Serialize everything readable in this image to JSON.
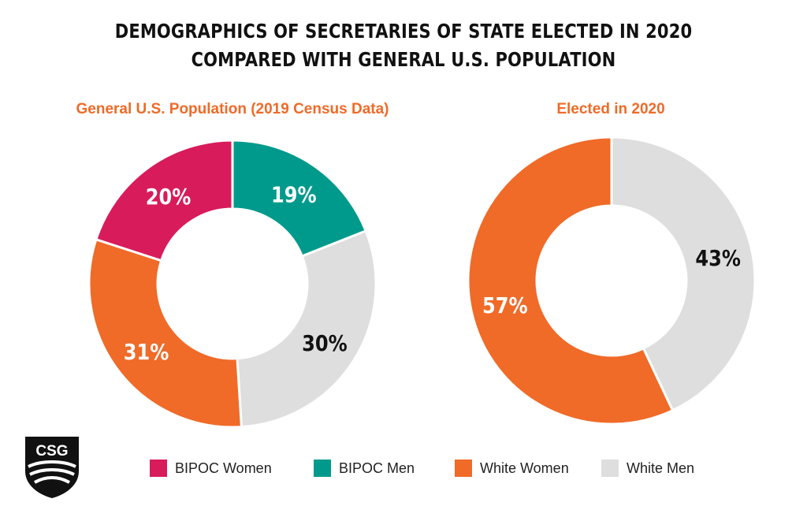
{
  "title": {
    "line1": "DEMOGRAPHICS OF SECRETARIES OF STATE ELECTED IN 2020",
    "line2": "COMPARED WITH GENERAL U.S. POPULATION"
  },
  "colors": {
    "bipoc_women": "#d81b5a",
    "bipoc_men": "#009a8c",
    "white_women": "#f06a28",
    "white_men": "#dedede",
    "subtitle": "#f06a28"
  },
  "logo": {
    "text": "CSG",
    "icon": "csg-shield-logo"
  },
  "legend": [
    {
      "label": "BIPOC Women",
      "color": "#d81b5a"
    },
    {
      "label": "BIPOC Men",
      "color": "#009a8c"
    },
    {
      "label": "White Women",
      "color": "#f06a28"
    },
    {
      "label": "White Men",
      "color": "#dedede"
    }
  ],
  "chart_data": [
    {
      "type": "pie",
      "title": "General U.S. Population (2019 Census Data)",
      "slices": [
        {
          "category": "BIPOC Men",
          "value": 19,
          "label": "19%",
          "color": "#009a8c",
          "label_color": "#ffffff"
        },
        {
          "category": "White Men",
          "value": 30,
          "label": "30%",
          "color": "#dedede",
          "label_color": "#111111"
        },
        {
          "category": "White Women",
          "value": 31,
          "label": "31%",
          "color": "#f06a28",
          "label_color": "#ffffff"
        },
        {
          "category": "BIPOC Women",
          "value": 20,
          "label": "20%",
          "color": "#d81b5a",
          "label_color": "#ffffff"
        }
      ]
    },
    {
      "type": "pie",
      "title": "Elected in 2020",
      "slices": [
        {
          "category": "White Men",
          "value": 43,
          "label": "43%",
          "color": "#dedede",
          "label_color": "#111111"
        },
        {
          "category": "White Women",
          "value": 57,
          "label": "57%",
          "color": "#f06a28",
          "label_color": "#ffffff"
        }
      ]
    }
  ]
}
